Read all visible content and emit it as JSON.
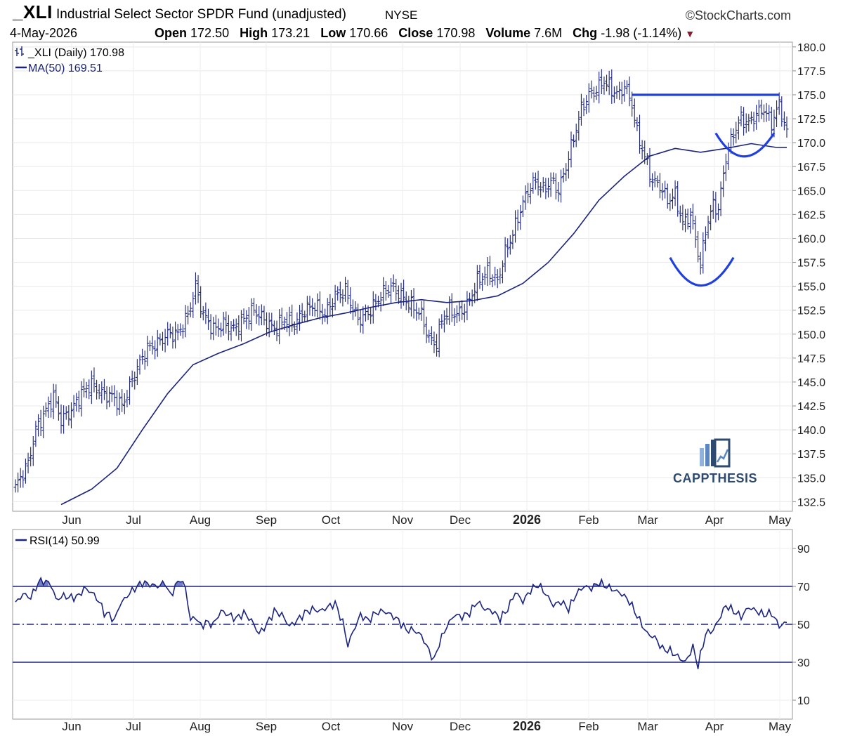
{
  "header": {
    "ticker": "_XLI",
    "name": "Industrial Select Sector SPDR Fund (unadjusted)",
    "exchange": "NYSE",
    "copyright": "©StockCharts.com",
    "date": "4-May-2026",
    "open_label": "Open",
    "open": "172.50",
    "high_label": "High",
    "high": "173.21",
    "low_label": "Low",
    "low": "170.66",
    "close_label": "Close",
    "close": "170.98",
    "volume_label": "Volume",
    "volume": "7.6M",
    "chg_label": "Chg",
    "chg": "-1.98 (-1.14%)"
  },
  "brand": {
    "text": "CAPPTHESIS"
  },
  "chart_data": [
    {
      "type": "ohlc",
      "legend": [
        {
          "text": "_XLI (Daily) 170.98",
          "icon": "ohlc-bar-icon"
        },
        {
          "text": "MA(50) 169.51",
          "icon": "line-icon"
        }
      ],
      "ylim": [
        131.5,
        180.5
      ],
      "y_ticks": [
        "180.0",
        "177.5",
        "175.0",
        "172.5",
        "170.0",
        "167.5",
        "165.0",
        "162.5",
        "160.0",
        "157.5",
        "155.0",
        "152.5",
        "150.0",
        "147.5",
        "145.0",
        "142.5",
        "140.0",
        "137.5",
        "135.0",
        "132.5"
      ],
      "x_labels": [
        "Jun",
        "Jul",
        "Aug",
        "Sep",
        "Oct",
        "Nov",
        "Dec",
        "2026",
        "Feb",
        "Mar",
        "Apr",
        "May"
      ],
      "close_path": [
        [
          0,
          134.0
        ],
        [
          5,
          136.5
        ],
        [
          8,
          140.0
        ],
        [
          12,
          142.0
        ],
        [
          15,
          143.5
        ],
        [
          18,
          141.0
        ],
        [
          22,
          142.0
        ],
        [
          26,
          143.8
        ],
        [
          30,
          144.8
        ],
        [
          34,
          143.8
        ],
        [
          38,
          143.5
        ],
        [
          42,
          142.5
        ],
        [
          45,
          144.5
        ],
        [
          48,
          146.5
        ],
        [
          52,
          148.5
        ],
        [
          56,
          149.0
        ],
        [
          60,
          150.0
        ],
        [
          64,
          150.0
        ],
        [
          68,
          152.0
        ],
        [
          71,
          155.0
        ],
        [
          74,
          152.0
        ],
        [
          78,
          150.5
        ],
        [
          82,
          151.0
        ],
        [
          86,
          150.5
        ],
        [
          90,
          151.5
        ],
        [
          94,
          152.5
        ],
        [
          98,
          151.5
        ],
        [
          102,
          150.5
        ],
        [
          106,
          151.5
        ],
        [
          110,
          151.0
        ],
        [
          114,
          152.5
        ],
        [
          118,
          153.0
        ],
        [
          122,
          152.0
        ],
        [
          126,
          154.0
        ],
        [
          130,
          154.5
        ],
        [
          134,
          152.0
        ],
        [
          136,
          151.5
        ],
        [
          140,
          152.5
        ],
        [
          144,
          154.0
        ],
        [
          148,
          155.0
        ],
        [
          152,
          154.0
        ],
        [
          156,
          153.0
        ],
        [
          160,
          152.0
        ],
        [
          163,
          149.5
        ],
        [
          166,
          149.0
        ],
        [
          168,
          151.5
        ],
        [
          171,
          152.5
        ],
        [
          174,
          152.0
        ],
        [
          178,
          153.0
        ],
        [
          182,
          155.5
        ],
        [
          186,
          156.5
        ],
        [
          190,
          155.5
        ],
        [
          193,
          158.5
        ],
        [
          196,
          160.5
        ],
        [
          199,
          163.0
        ],
        [
          202,
          165.0
        ],
        [
          205,
          166.0
        ],
        [
          208,
          165.0
        ],
        [
          211,
          166.0
        ],
        [
          214,
          165.0
        ],
        [
          217,
          167.5
        ],
        [
          220,
          170.5
        ],
        [
          223,
          173.5
        ],
        [
          226,
          175.0
        ],
        [
          229,
          175.5
        ],
        [
          232,
          176.5
        ],
        [
          235,
          175.5
        ],
        [
          238,
          175.0
        ],
        [
          240,
          176.0
        ],
        [
          243,
          174.0
        ],
        [
          245,
          171.0
        ],
        [
          248,
          168.5
        ],
        [
          251,
          166.0
        ],
        [
          254,
          165.5
        ],
        [
          257,
          164.0
        ],
        [
          260,
          164.5
        ],
        [
          263,
          161.5
        ],
        [
          266,
          162.5
        ],
        [
          268,
          160.0
        ],
        [
          270,
          157.0
        ],
        [
          272,
          161.0
        ],
        [
          275,
          163.5
        ],
        [
          277,
          163.0
        ],
        [
          280,
          168.5
        ],
        [
          283,
          171.0
        ],
        [
          286,
          172.5
        ],
        [
          289,
          172.0
        ],
        [
          292,
          173.0
        ],
        [
          295,
          173.5
        ],
        [
          298,
          172.0
        ],
        [
          301,
          174.0
        ],
        [
          304,
          170.98
        ]
      ],
      "ma50_path": [
        [
          18,
          132.2
        ],
        [
          30,
          133.8
        ],
        [
          40,
          136.0
        ],
        [
          50,
          140.0
        ],
        [
          60,
          143.8
        ],
        [
          70,
          146.8
        ],
        [
          80,
          148.0
        ],
        [
          90,
          149.0
        ],
        [
          100,
          150.2
        ],
        [
          110,
          151.0
        ],
        [
          120,
          151.7
        ],
        [
          130,
          152.2
        ],
        [
          140,
          152.8
        ],
        [
          150,
          153.3
        ],
        [
          160,
          153.6
        ],
        [
          170,
          153.3
        ],
        [
          180,
          153.5
        ],
        [
          190,
          154.0
        ],
        [
          200,
          155.3
        ],
        [
          210,
          157.5
        ],
        [
          220,
          160.5
        ],
        [
          230,
          164.0
        ],
        [
          240,
          166.5
        ],
        [
          250,
          168.6
        ],
        [
          260,
          169.4
        ],
        [
          270,
          169.0
        ],
        [
          280,
          169.4
        ],
        [
          290,
          169.9
        ],
        [
          300,
          169.5
        ],
        [
          304,
          169.51
        ]
      ],
      "annotations": {
        "resistance_level": 175.0,
        "lower_cup": {
          "left": [
            258,
            158.0
          ],
          "bottom": [
            270,
            155.0
          ],
          "right": [
            283,
            158.0
          ]
        },
        "upper_cup": {
          "left": [
            276,
            171.0
          ],
          "bottom": [
            287,
            168.5
          ],
          "right": [
            299,
            171.0
          ]
        }
      }
    },
    {
      "type": "line",
      "legend": [
        {
          "text": "RSI(14) 50.99",
          "icon": "line-icon"
        }
      ],
      "ylim": [
        0,
        100
      ],
      "y_ticks": [
        "90",
        "70",
        "50",
        "30",
        "10"
      ],
      "reference_lines": [
        70,
        50,
        30
      ],
      "x_labels": [
        "Jun",
        "Jul",
        "Aug",
        "Sep",
        "Oct",
        "Nov",
        "Dec",
        "2026",
        "Feb",
        "Mar",
        "Apr",
        "May"
      ],
      "rsi_path": [
        [
          0,
          61
        ],
        [
          3,
          66
        ],
        [
          6,
          64
        ],
        [
          9,
          72
        ],
        [
          11,
          73
        ],
        [
          14,
          71
        ],
        [
          16,
          63
        ],
        [
          19,
          65
        ],
        [
          22,
          64
        ],
        [
          25,
          65
        ],
        [
          27,
          69
        ],
        [
          30,
          67
        ],
        [
          33,
          62
        ],
        [
          35,
          56
        ],
        [
          37,
          55
        ],
        [
          39,
          52
        ],
        [
          41,
          60
        ],
        [
          44,
          65
        ],
        [
          47,
          69
        ],
        [
          50,
          72
        ],
        [
          53,
          71
        ],
        [
          56,
          70
        ],
        [
          59,
          72
        ],
        [
          61,
          65
        ],
        [
          63,
          70
        ],
        [
          65,
          74
        ],
        [
          67,
          69
        ],
        [
          69,
          52
        ],
        [
          71,
          54
        ],
        [
          73,
          49
        ],
        [
          75,
          51
        ],
        [
          78,
          50
        ],
        [
          81,
          57
        ],
        [
          84,
          55
        ],
        [
          87,
          53
        ],
        [
          90,
          56
        ],
        [
          93,
          52
        ],
        [
          96,
          45
        ],
        [
          99,
          50
        ],
        [
          102,
          57
        ],
        [
          105,
          55
        ],
        [
          108,
          49
        ],
        [
          111,
          52
        ],
        [
          114,
          56
        ],
        [
          117,
          58
        ],
        [
          120,
          57
        ],
        [
          123,
          59
        ],
        [
          126,
          61
        ],
        [
          129,
          51
        ],
        [
          131,
          39
        ],
        [
          133,
          46
        ],
        [
          136,
          55
        ],
        [
          139,
          52
        ],
        [
          142,
          56
        ],
        [
          145,
          57
        ],
        [
          148,
          55
        ],
        [
          151,
          52
        ],
        [
          154,
          47
        ],
        [
          157,
          47
        ],
        [
          160,
          44
        ],
        [
          163,
          36
        ],
        [
          165,
          31
        ],
        [
          167,
          40
        ],
        [
          170,
          49
        ],
        [
          173,
          55
        ],
        [
          176,
          54
        ],
        [
          179,
          56
        ],
        [
          182,
          62
        ],
        [
          185,
          58
        ],
        [
          188,
          57
        ],
        [
          191,
          53
        ],
        [
          194,
          58
        ],
        [
          197,
          67
        ],
        [
          200,
          62
        ],
        [
          203,
          68
        ],
        [
          206,
          71
        ],
        [
          209,
          66
        ],
        [
          212,
          60
        ],
        [
          215,
          62
        ],
        [
          218,
          58
        ],
        [
          221,
          66
        ],
        [
          224,
          70
        ],
        [
          227,
          69
        ],
        [
          230,
          72
        ],
        [
          233,
          70
        ],
        [
          236,
          68
        ],
        [
          239,
          66
        ],
        [
          242,
          62
        ],
        [
          244,
          57
        ],
        [
          246,
          52
        ],
        [
          249,
          45
        ],
        [
          252,
          43
        ],
        [
          255,
          37
        ],
        [
          258,
          36
        ],
        [
          261,
          33
        ],
        [
          264,
          30
        ],
        [
          267,
          38
        ],
        [
          269,
          28
        ],
        [
          272,
          45
        ],
        [
          275,
          47
        ],
        [
          277,
          52
        ],
        [
          280,
          60
        ],
        [
          283,
          57
        ],
        [
          286,
          54
        ],
        [
          289,
          59
        ],
        [
          292,
          57
        ],
        [
          295,
          55
        ],
        [
          298,
          56
        ],
        [
          301,
          49
        ],
        [
          304,
          50.99
        ]
      ]
    }
  ]
}
